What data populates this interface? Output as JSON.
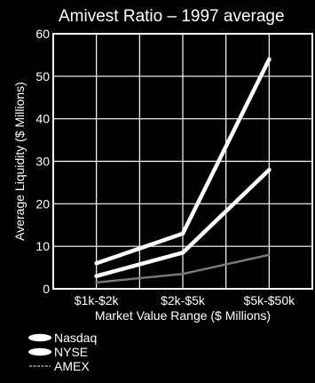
{
  "chart_data": {
    "type": "line",
    "title": "Amivest Ratio – 1997 average",
    "xlabel": "Market Value Range ($ Millions)",
    "ylabel": "Average Liquidity ($ Millions)",
    "categories": [
      "$1k-$2k",
      "$2k-$5k",
      "$5k-$50k"
    ],
    "ylim": [
      0,
      60
    ],
    "yticks": [
      0,
      10,
      20,
      30,
      40,
      50,
      60
    ],
    "grid": true,
    "legend_position": "bottom-left",
    "series": [
      {
        "name": "Nasdaq",
        "values": [
          6,
          13,
          54
        ],
        "color": "#ffffff"
      },
      {
        "name": "NYSE",
        "values": [
          3,
          8.5,
          28
        ],
        "color": "#ffffff"
      },
      {
        "name": "AMEX",
        "values": [
          1.5,
          3.5,
          8
        ],
        "color": "#7a7a7a"
      }
    ],
    "colors": {
      "background": "#000000",
      "text": "#ffffff",
      "grid": "#ffffff"
    }
  }
}
